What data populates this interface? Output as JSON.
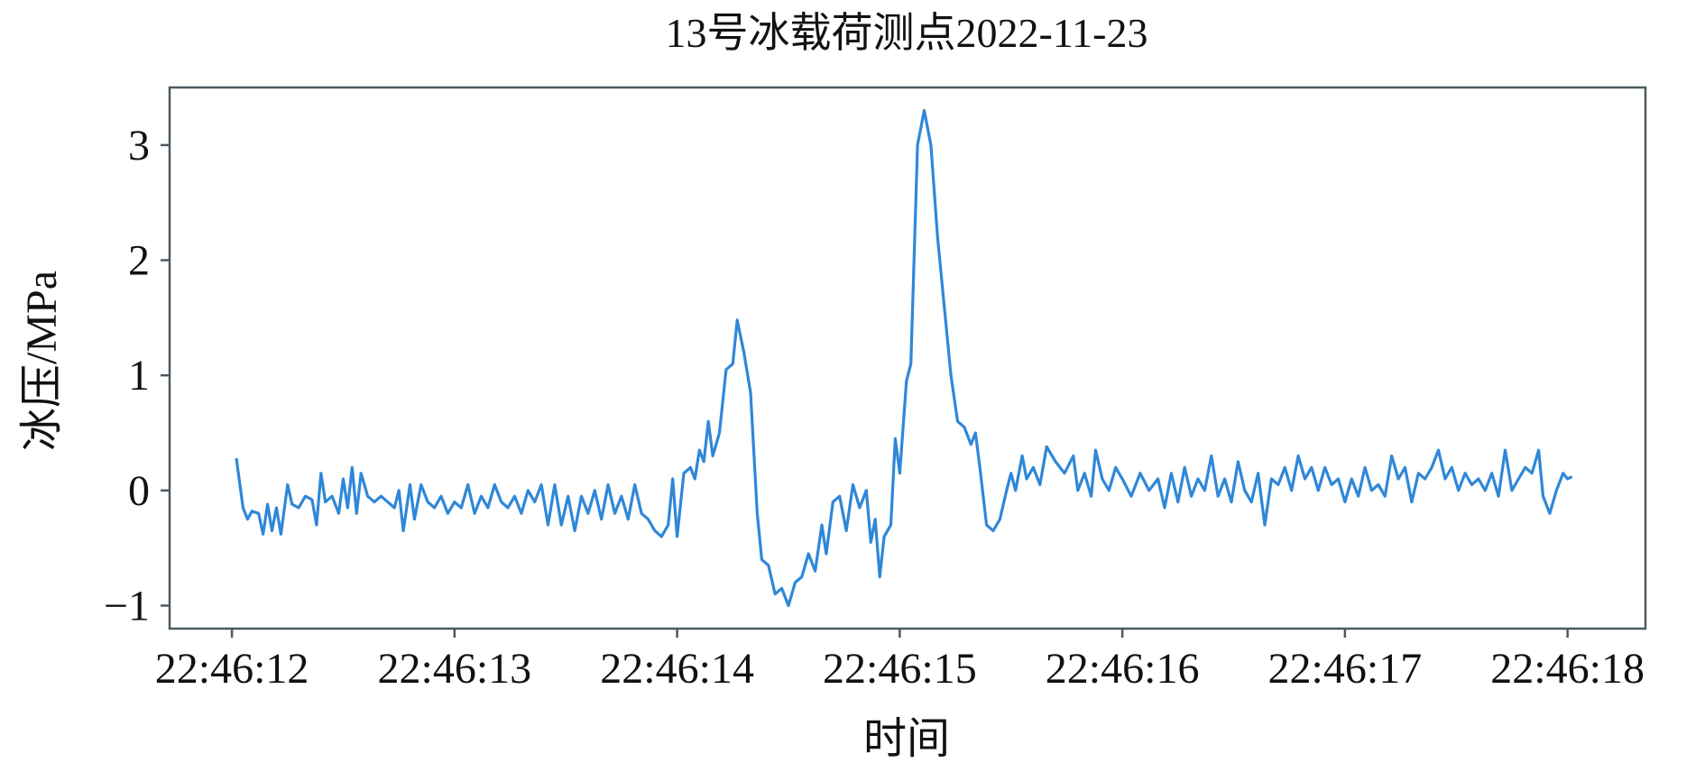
{
  "chart_data": {
    "type": "line",
    "title": "13号冰载荷测点2022-11-23",
    "xlabel": "时间",
    "ylabel": "冰压/MPa",
    "xlim": [
      "22:46:11.72",
      "22:46:18.35"
    ],
    "ylim": [
      -1.2,
      3.5
    ],
    "x_ticks": [
      "22:46:12",
      "22:46:13",
      "22:46:14",
      "22:46:15",
      "22:46:16",
      "22:46:17",
      "22:46:18"
    ],
    "y_ticks": [
      -1,
      0,
      1,
      2,
      3
    ],
    "y_tick_labels": [
      "−1",
      "0",
      "1",
      "2",
      "3"
    ],
    "grid": false,
    "line_color": "#2f87d8",
    "series": [
      {
        "points": [
          [
            "22:46:12.02",
            0.28
          ],
          [
            "22:46:12.05",
            -0.15
          ],
          [
            "22:46:12.07",
            -0.25
          ],
          [
            "22:46:12.09",
            -0.18
          ],
          [
            "22:46:12.12",
            -0.2
          ],
          [
            "22:46:12.14",
            -0.38
          ],
          [
            "22:46:12.16",
            -0.12
          ],
          [
            "22:46:12.18",
            -0.35
          ],
          [
            "22:46:12.20",
            -0.15
          ],
          [
            "22:46:12.22",
            -0.38
          ],
          [
            "22:46:12.25",
            0.05
          ],
          [
            "22:46:12.27",
            -0.12
          ],
          [
            "22:46:12.30",
            -0.15
          ],
          [
            "22:46:12.33",
            -0.05
          ],
          [
            "22:46:12.36",
            -0.08
          ],
          [
            "22:46:12.38",
            -0.3
          ],
          [
            "22:46:12.40",
            0.15
          ],
          [
            "22:46:12.42",
            -0.1
          ],
          [
            "22:46:12.45",
            -0.05
          ],
          [
            "22:46:12.48",
            -0.2
          ],
          [
            "22:46:12.50",
            0.1
          ],
          [
            "22:46:12.52",
            -0.15
          ],
          [
            "22:46:12.54",
            0.2
          ],
          [
            "22:46:12.56",
            -0.2
          ],
          [
            "22:46:12.58",
            0.15
          ],
          [
            "22:46:12.61",
            -0.05
          ],
          [
            "22:46:12.64",
            -0.1
          ],
          [
            "22:46:12.67",
            -0.05
          ],
          [
            "22:46:12.70",
            -0.1
          ],
          [
            "22:46:12.73",
            -0.15
          ],
          [
            "22:46:12.75",
            0.0
          ],
          [
            "22:46:12.77",
            -0.35
          ],
          [
            "22:46:12.80",
            0.05
          ],
          [
            "22:46:12.82",
            -0.25
          ],
          [
            "22:46:12.85",
            0.05
          ],
          [
            "22:46:12.88",
            -0.1
          ],
          [
            "22:46:12.91",
            -0.15
          ],
          [
            "22:46:12.94",
            -0.05
          ],
          [
            "22:46:12.97",
            -0.2
          ],
          [
            "22:46:13.00",
            -0.1
          ],
          [
            "22:46:13.03",
            -0.15
          ],
          [
            "22:46:13.06",
            0.05
          ],
          [
            "22:46:13.09",
            -0.2
          ],
          [
            "22:46:13.12",
            -0.05
          ],
          [
            "22:46:13.15",
            -0.15
          ],
          [
            "22:46:13.18",
            0.05
          ],
          [
            "22:46:13.21",
            -0.1
          ],
          [
            "22:46:13.24",
            -0.15
          ],
          [
            "22:46:13.27",
            -0.05
          ],
          [
            "22:46:13.30",
            -0.2
          ],
          [
            "22:46:13.33",
            0.0
          ],
          [
            "22:46:13.36",
            -0.1
          ],
          [
            "22:46:13.39",
            0.05
          ],
          [
            "22:46:13.42",
            -0.3
          ],
          [
            "22:46:13.45",
            0.05
          ],
          [
            "22:46:13.48",
            -0.3
          ],
          [
            "22:46:13.51",
            -0.05
          ],
          [
            "22:46:13.54",
            -0.35
          ],
          [
            "22:46:13.57",
            -0.05
          ],
          [
            "22:46:13.60",
            -0.2
          ],
          [
            "22:46:13.63",
            0.0
          ],
          [
            "22:46:13.66",
            -0.25
          ],
          [
            "22:46:13.69",
            0.05
          ],
          [
            "22:46:13.72",
            -0.2
          ],
          [
            "22:46:13.75",
            -0.05
          ],
          [
            "22:46:13.78",
            -0.25
          ],
          [
            "22:46:13.81",
            0.05
          ],
          [
            "22:46:13.84",
            -0.2
          ],
          [
            "22:46:13.87",
            -0.25
          ],
          [
            "22:46:13.90",
            -0.35
          ],
          [
            "22:46:13.93",
            -0.4
          ],
          [
            "22:46:13.96",
            -0.3
          ],
          [
            "22:46:13.98",
            0.1
          ],
          [
            "22:46:14.00",
            -0.4
          ],
          [
            "22:46:14.03",
            0.15
          ],
          [
            "22:46:14.06",
            0.2
          ],
          [
            "22:46:14.08",
            0.1
          ],
          [
            "22:46:14.10",
            0.35
          ],
          [
            "22:46:14.12",
            0.25
          ],
          [
            "22:46:14.14",
            0.6
          ],
          [
            "22:46:14.16",
            0.3
          ],
          [
            "22:46:14.19",
            0.5
          ],
          [
            "22:46:14.22",
            1.05
          ],
          [
            "22:46:14.25",
            1.1
          ],
          [
            "22:46:14.27",
            1.48
          ],
          [
            "22:46:14.30",
            1.2
          ],
          [
            "22:46:14.33",
            0.85
          ],
          [
            "22:46:14.36",
            -0.2
          ],
          [
            "22:46:14.38",
            -0.6
          ],
          [
            "22:46:14.41",
            -0.65
          ],
          [
            "22:46:14.44",
            -0.9
          ],
          [
            "22:46:14.47",
            -0.85
          ],
          [
            "22:46:14.50",
            -1.0
          ],
          [
            "22:46:14.53",
            -0.8
          ],
          [
            "22:46:14.56",
            -0.75
          ],
          [
            "22:46:14.59",
            -0.55
          ],
          [
            "22:46:14.62",
            -0.7
          ],
          [
            "22:46:14.65",
            -0.3
          ],
          [
            "22:46:14.67",
            -0.55
          ],
          [
            "22:46:14.70",
            -0.1
          ],
          [
            "22:46:14.73",
            -0.05
          ],
          [
            "22:46:14.76",
            -0.35
          ],
          [
            "22:46:14.79",
            0.05
          ],
          [
            "22:46:14.82",
            -0.15
          ],
          [
            "22:46:14.85",
            0.0
          ],
          [
            "22:46:14.87",
            -0.45
          ],
          [
            "22:46:14.89",
            -0.25
          ],
          [
            "22:46:14.91",
            -0.75
          ],
          [
            "22:46:14.93",
            -0.4
          ],
          [
            "22:46:14.96",
            -0.3
          ],
          [
            "22:46:14.98",
            0.45
          ],
          [
            "22:46:15.00",
            0.15
          ],
          [
            "22:46:15.03",
            0.95
          ],
          [
            "22:46:15.05",
            1.1
          ],
          [
            "22:46:15.08",
            3.0
          ],
          [
            "22:46:15.11",
            3.3
          ],
          [
            "22:46:15.14",
            3.0
          ],
          [
            "22:46:15.17",
            2.2
          ],
          [
            "22:46:15.20",
            1.6
          ],
          [
            "22:46:15.23",
            1.0
          ],
          [
            "22:46:15.26",
            0.6
          ],
          [
            "22:46:15.29",
            0.55
          ],
          [
            "22:46:15.32",
            0.4
          ],
          [
            "22:46:15.34",
            0.5
          ],
          [
            "22:46:15.36",
            0.2
          ],
          [
            "22:46:15.39",
            -0.3
          ],
          [
            "22:46:15.42",
            -0.35
          ],
          [
            "22:46:15.45",
            -0.25
          ],
          [
            "22:46:15.48",
            0.0
          ],
          [
            "22:46:15.50",
            0.15
          ],
          [
            "22:46:15.52",
            0.0
          ],
          [
            "22:46:15.55",
            0.3
          ],
          [
            "22:46:15.57",
            0.1
          ],
          [
            "22:46:15.60",
            0.2
          ],
          [
            "22:46:15.63",
            0.05
          ],
          [
            "22:46:15.66",
            0.38
          ],
          [
            "22:46:15.70",
            0.25
          ],
          [
            "22:46:15.74",
            0.15
          ],
          [
            "22:46:15.78",
            0.3
          ],
          [
            "22:46:15.80",
            0.0
          ],
          [
            "22:46:15.83",
            0.15
          ],
          [
            "22:46:15.86",
            -0.05
          ],
          [
            "22:46:15.88",
            0.35
          ],
          [
            "22:46:15.91",
            0.1
          ],
          [
            "22:46:15.94",
            0.0
          ],
          [
            "22:46:15.97",
            0.2
          ],
          [
            "22:46:16.00",
            0.1
          ],
          [
            "22:46:16.04",
            -0.05
          ],
          [
            "22:46:16.08",
            0.15
          ],
          [
            "22:46:16.12",
            0.0
          ],
          [
            "22:46:16.16",
            0.1
          ],
          [
            "22:46:16.19",
            -0.15
          ],
          [
            "22:46:16.22",
            0.15
          ],
          [
            "22:46:16.25",
            -0.1
          ],
          [
            "22:46:16.28",
            0.2
          ],
          [
            "22:46:16.31",
            -0.05
          ],
          [
            "22:46:16.34",
            0.1
          ],
          [
            "22:46:16.37",
            0.0
          ],
          [
            "22:46:16.40",
            0.3
          ],
          [
            "22:46:16.43",
            -0.05
          ],
          [
            "22:46:16.46",
            0.1
          ],
          [
            "22:46:16.49",
            -0.1
          ],
          [
            "22:46:16.52",
            0.25
          ],
          [
            "22:46:16.55",
            0.0
          ],
          [
            "22:46:16.58",
            -0.1
          ],
          [
            "22:46:16.61",
            0.15
          ],
          [
            "22:46:16.64",
            -0.3
          ],
          [
            "22:46:16.67",
            0.1
          ],
          [
            "22:46:16.70",
            0.05
          ],
          [
            "22:46:16.73",
            0.2
          ],
          [
            "22:46:16.76",
            0.0
          ],
          [
            "22:46:16.79",
            0.3
          ],
          [
            "22:46:16.82",
            0.1
          ],
          [
            "22:46:16.85",
            0.2
          ],
          [
            "22:46:16.88",
            0.0
          ],
          [
            "22:46:16.91",
            0.2
          ],
          [
            "22:46:16.94",
            0.05
          ],
          [
            "22:46:16.97",
            0.1
          ],
          [
            "22:46:17.00",
            -0.1
          ],
          [
            "22:46:17.03",
            0.1
          ],
          [
            "22:46:17.06",
            -0.05
          ],
          [
            "22:46:17.09",
            0.2
          ],
          [
            "22:46:17.12",
            0.0
          ],
          [
            "22:46:17.15",
            0.05
          ],
          [
            "22:46:17.18",
            -0.05
          ],
          [
            "22:46:17.21",
            0.3
          ],
          [
            "22:46:17.24",
            0.1
          ],
          [
            "22:46:17.27",
            0.2
          ],
          [
            "22:46:17.30",
            -0.1
          ],
          [
            "22:46:17.33",
            0.15
          ],
          [
            "22:46:17.36",
            0.1
          ],
          [
            "22:46:17.39",
            0.2
          ],
          [
            "22:46:17.42",
            0.35
          ],
          [
            "22:46:17.45",
            0.1
          ],
          [
            "22:46:17.48",
            0.2
          ],
          [
            "22:46:17.51",
            0.0
          ],
          [
            "22:46:17.54",
            0.15
          ],
          [
            "22:46:17.57",
            0.05
          ],
          [
            "22:46:17.60",
            0.1
          ],
          [
            "22:46:17.63",
            0.0
          ],
          [
            "22:46:17.66",
            0.15
          ],
          [
            "22:46:17.69",
            -0.05
          ],
          [
            "22:46:17.72",
            0.35
          ],
          [
            "22:46:17.75",
            0.0
          ],
          [
            "22:46:17.78",
            0.1
          ],
          [
            "22:46:17.81",
            0.2
          ],
          [
            "22:46:17.84",
            0.15
          ],
          [
            "22:46:17.87",
            0.35
          ],
          [
            "22:46:17.89",
            -0.05
          ],
          [
            "22:46:17.92",
            -0.2
          ],
          [
            "22:46:17.95",
            0.0
          ],
          [
            "22:46:17.98",
            0.15
          ],
          [
            "22:46:18.00",
            0.1
          ],
          [
            "22:46:18.02",
            0.12
          ]
        ]
      }
    ]
  }
}
